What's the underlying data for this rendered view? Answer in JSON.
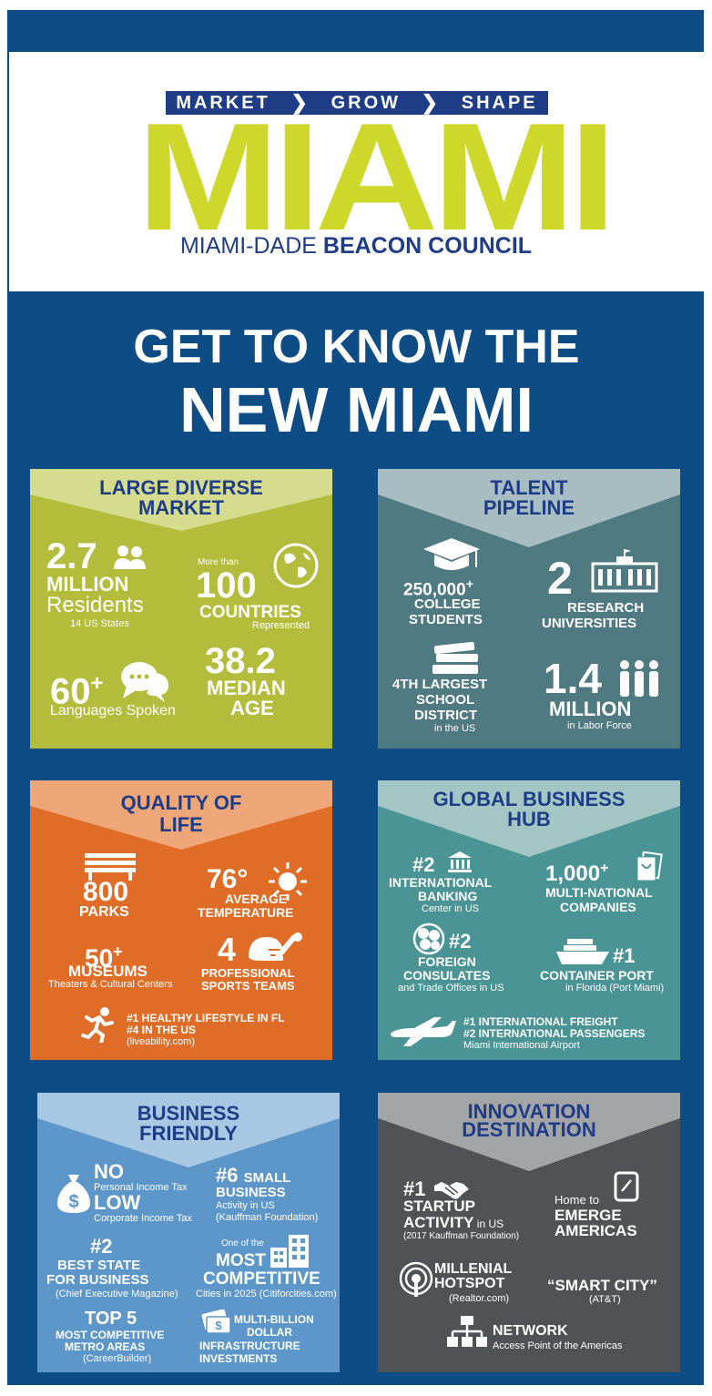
{
  "header": {
    "tagline": [
      "MARKET",
      "GROW",
      "SHAPE"
    ],
    "logo_word": "MIAMI",
    "council_prefix": "MIAMI-DADE ",
    "council_bold": "BEACON COUNCIL"
  },
  "headline": {
    "line1": "GET TO KNOW THE",
    "line2": "NEW MIAMI"
  },
  "colors": {
    "frame": "#0e4c86",
    "lime": "#cdd82a",
    "navy": "#1f3d86",
    "market": "#b3bd3b",
    "talent": "#507a82",
    "quality": "#e06d27",
    "global": "#4a9496",
    "business": "#5d97c9",
    "innovation": "#505255"
  },
  "market": {
    "title1": "LARGE DIVERSE",
    "title2": "MARKET",
    "residents_num": "2.7",
    "residents_unit": "MILLION",
    "residents_label": "Residents",
    "residents_note": "14 US States",
    "countries_pre": "More than",
    "countries_num": "100",
    "countries_label": "COUNTRIES",
    "countries_note": "Represented",
    "lang_num": "60",
    "lang_sup": "+",
    "lang_label": "Languages Spoken",
    "age_num": "38.2",
    "age_l1": "MEDIAN",
    "age_l2": "AGE"
  },
  "talent": {
    "title1": "TALENT",
    "title2": "PIPELINE",
    "students_num": "250,000",
    "students_sup": "+",
    "students_l1": "COLLEGE",
    "students_l2": "STUDENTS",
    "univ_num": "2",
    "univ_l1": "RESEARCH",
    "univ_l2": "UNIVERSITIES",
    "school_l1": "4TH LARGEST",
    "school_l2": "SCHOOL",
    "school_l3": "DISTRICT",
    "school_note": "in the US",
    "labor_num": "1.4",
    "labor_l1": "MILLION",
    "labor_note": "in Labor Force"
  },
  "quality": {
    "title1": "QUALITY OF",
    "title2": "LIFE",
    "parks_num": "800",
    "parks_label": "PARKS",
    "temp_num": "76°",
    "temp_l1": "AVERAGE",
    "temp_l2": "TEMPERATURE",
    "museums_num": "50",
    "museums_sup": "+",
    "museums_label": "MUSEUMS",
    "museums_note": "Theaters & Cultural Centers",
    "sports_num": "4",
    "sports_l1": "PROFESSIONAL",
    "sports_l2": "SPORTS TEAMS",
    "healthy_l1": "#1 HEALTHY LIFESTYLE IN FL",
    "healthy_l2": "#4 IN THE US",
    "healthy_note": "(liveability.com)"
  },
  "global": {
    "title1": "GLOBAL BUSINESS",
    "title2": "HUB",
    "bank_num": "#2",
    "bank_l1": "INTERNATIONAL",
    "bank_l2": "BANKING",
    "bank_note": "Center in US",
    "mnc_num": "1,000",
    "mnc_sup": "+",
    "mnc_l1": "MULTI-NATIONAL",
    "mnc_l2": "COMPANIES",
    "cons_num": "#2",
    "cons_l1": "FOREIGN",
    "cons_l2": "CONSULATES",
    "cons_note": "and Trade Offices in US",
    "port_num": "#1",
    "port_l1": "CONTAINER  PORT",
    "port_note": "in Florida (Port Miami)",
    "air_l1": "#1 INTERNATIONAL FREIGHT",
    "air_l2": "#2 INTERNATIONAL PASSENGERS",
    "air_note": "Miami International Airport"
  },
  "business": {
    "title1": "BUSINESS",
    "title2": "FRIENDLY",
    "no": "NO",
    "no_note": "Personal Income Tax",
    "low": "LOW",
    "low_note": "Corporate Income Tax",
    "small_num": "#6",
    "small_l1": "SMALL",
    "small_l2": "BUSINESS",
    "small_n1": "Activity in US",
    "small_n2": "(Kauffman Foundation)",
    "state_num": "#2",
    "state_l1": "BEST STATE",
    "state_l2": "FOR BUSINESS",
    "state_note": "(Chief Executive Magazine)",
    "comp_pre": "One of the",
    "comp_l1": "MOST",
    "comp_l2": "COMPETITIVE",
    "comp_note": "Cities in 2025 (Citiforcities.com)",
    "top_num": "TOP 5",
    "top_l1": "MOST COMPETITIVE",
    "top_l2": "METRO AREAS",
    "top_note": "(CareerBuilder)",
    "infra_l1": "MULTI-BILLION",
    "infra_l2": "DOLLAR",
    "infra_l3": "INFRASTRUCTURE",
    "infra_l4": "INVESTMENTS"
  },
  "innovation": {
    "title1": "INNOVATION",
    "title2": "DESTINATION",
    "startup_num": "#1",
    "startup_l1": "STARTUP",
    "startup_l2": "ACTIVITY",
    "startup_l2s": " in US",
    "startup_note": "(2017 Kauffman Foundation)",
    "home_pre": "Home to",
    "home_l1": "EMERGE",
    "home_l2": "AMERICAS",
    "hot_l1": "MILLENIAL",
    "hot_l2": "HOTSPOT",
    "hot_note": "(Realtor.com)",
    "smart": "“SMART CITY”",
    "smart_note": "(AT&T)",
    "net": "NETWORK",
    "net_note": "Access Point of the Americas"
  }
}
